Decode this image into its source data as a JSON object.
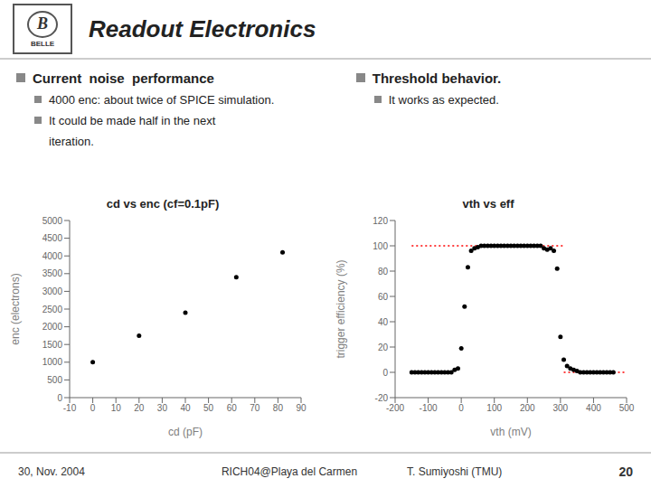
{
  "title": "Readout Electronics",
  "annotations": [
    "B",
    "BELLE",
    "Current  noise  performance",
    "4000 enc: about twice of SPICE simulation.",
    "It could be made half in the next",
    "iteration.",
    "Threshold behavior.",
    "It works as expected.",
    "30, Nov. 2004",
    "RICH04@Playa del Carmen",
    "T. Sumiyoshi (TMU)",
    "20"
  ],
  "chart_data": [
    {
      "type": "scatter",
      "title": "cd vs enc (cf=0.1pF)",
      "xlabel": "cd (pF)",
      "ylabel": "enc (electrons)",
      "x": [
        0,
        20,
        40,
        62,
        82
      ],
      "values": [
        1000,
        1750,
        2400,
        3400,
        4100
      ],
      "color": "#000000",
      "marker": "circle",
      "xlim": [
        -10,
        90
      ],
      "ylim": [
        0,
        5000
      ],
      "xticks": [
        -10,
        0,
        10,
        20,
        30,
        40,
        50,
        60,
        70,
        80,
        90
      ],
      "yticks": [
        0,
        500,
        1000,
        1500,
        2000,
        2500,
        3000,
        3500,
        4000,
        4500,
        5000
      ],
      "grid": false
    },
    {
      "type": "scatter",
      "title": "vth vs eff",
      "xlabel": "vth (mV)",
      "ylabel": "trigger efficiency (%)",
      "series": [
        {
          "type": "line",
          "color": "#ff0000",
          "line_style": "dotted",
          "x": [
            -150,
            310
          ],
          "values": [
            100,
            100
          ]
        },
        {
          "type": "line",
          "color": "#ff0000",
          "line_style": "dotted",
          "x": [
            310,
            500
          ],
          "values": [
            0,
            0
          ]
        },
        {
          "type": "scatter",
          "color": "#000000",
          "marker": "circle",
          "x": [
            -150,
            -140,
            -130,
            -120,
            -110,
            -100,
            -90,
            -80,
            -70,
            -60,
            -50,
            -40,
            -30,
            -20,
            -10,
            0,
            10,
            20,
            30,
            40,
            50,
            60,
            70,
            80,
            90,
            100,
            110,
            120,
            130,
            140,
            150,
            160,
            170,
            180,
            190,
            200,
            210,
            220,
            230,
            240,
            250,
            260,
            270,
            280,
            290,
            300,
            310,
            320,
            330,
            340,
            350,
            360,
            370,
            380,
            390,
            400,
            410,
            420,
            430,
            440,
            450,
            460
          ],
          "values": [
            0,
            0,
            0,
            0,
            0,
            0,
            0,
            0,
            0,
            0,
            0,
            0,
            0,
            2,
            3,
            19,
            52,
            83,
            96,
            98,
            99,
            100,
            100,
            100,
            100,
            100,
            100,
            100,
            100,
            100,
            100,
            100,
            100,
            100,
            100,
            100,
            100,
            100,
            100,
            100,
            98,
            97,
            98,
            96,
            82,
            28,
            10,
            5,
            3,
            2,
            1,
            0,
            0,
            0,
            0,
            0,
            0,
            0,
            0,
            0,
            0,
            0
          ]
        }
      ],
      "xlim": [
        -200,
        500
      ],
      "ylim": [
        -20,
        120
      ],
      "xticks": [
        -200,
        -100,
        0,
        100,
        200,
        300,
        400,
        500
      ],
      "yticks": [
        -20,
        0,
        20,
        40,
        60,
        80,
        100,
        120
      ],
      "grid": false
    }
  ]
}
